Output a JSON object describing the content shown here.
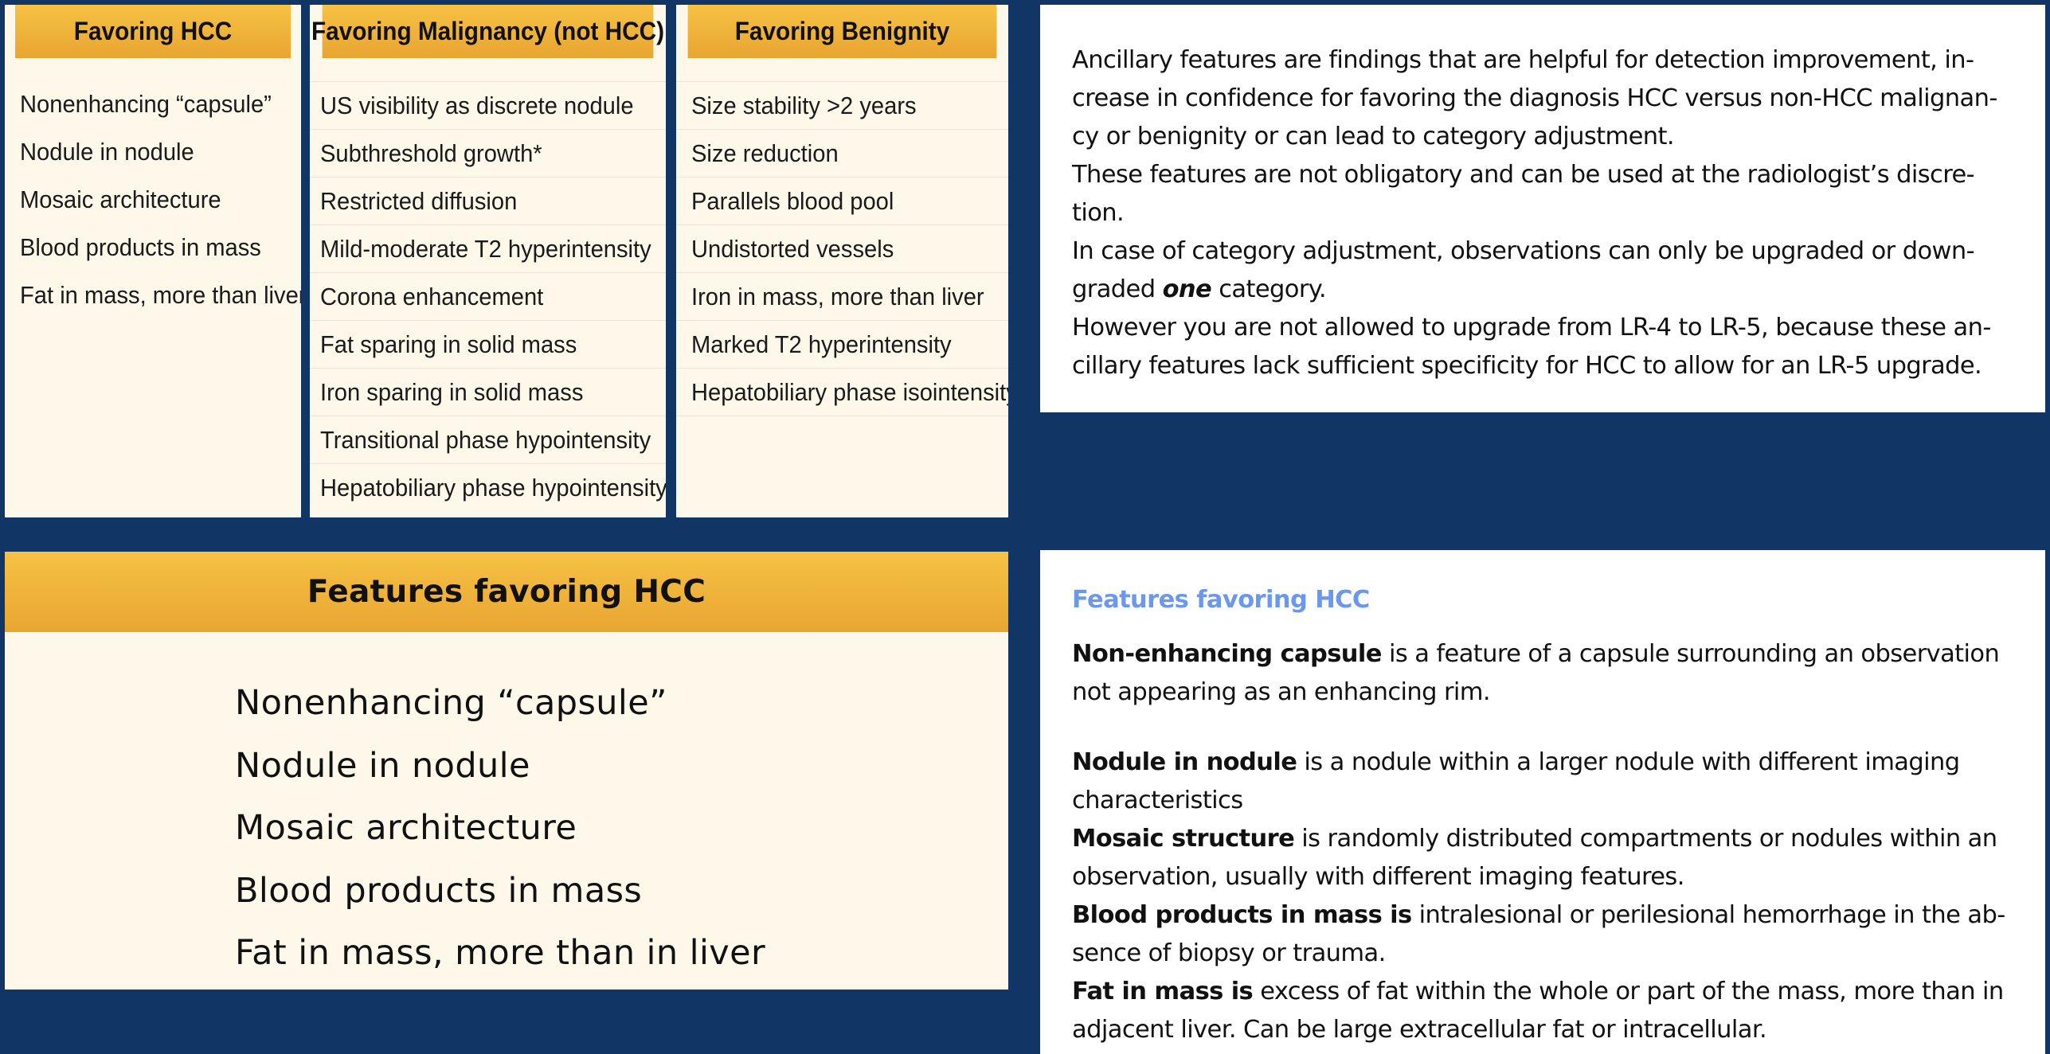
{
  "tables": {
    "favoring_hcc": {
      "header": "Favoring HCC",
      "items": [
        "Nonenhancing “capsule”",
        "Nodule in nodule",
        "Mosaic architecture",
        "Blood products in mass",
        "Fat in mass, more than liver"
      ]
    },
    "favoring_malignancy": {
      "header": "Favoring Malignancy (not HCC)",
      "items": [
        "US visibility as discrete nodule",
        "Subthreshold growth*",
        "Restricted diffusion",
        "Mild-moderate T2 hyperintensity",
        "Corona enhancement",
        "Fat sparing in solid mass",
        "Iron sparing in solid mass",
        "Transitional phase hypointensity",
        "Hepatobiliary phase hypointensity"
      ]
    },
    "favoring_benignity": {
      "header": "Favoring Benignity",
      "items": [
        "Size stability >2 years",
        "Size reduction",
        "Parallels blood pool",
        "Undistorted vessels",
        "Iron in mass, more than liver",
        "Marked T2 hyperintensity",
        "Hepatobiliary phase isointensity"
      ]
    }
  },
  "ancillary_text": {
    "line1": "Ancillary features are findings that are helpful for detection improvement, in-",
    "line2": "crease in confidence for favoring the diagnosis HCC versus non-HCC malignan-",
    "line3": "cy or benignity or can lead to category adjustment.",
    "line4": "These features are not obligatory and can be used at the radiologist’s discre-",
    "line5": "tion.",
    "line6": "In case of category adjustment, observations can only be upgraded or down-",
    "line7_pre": "graded ",
    "line7_em": "one",
    "line7_post": " category.",
    "line8": "However you are not allowed to upgrade from LR-4 to LR-5, because these an-",
    "line9": "cillary features lack sufficient specificity for HCC to allow for an LR-5 upgrade."
  },
  "big_table": {
    "header": "Features favoring HCC",
    "items": [
      "Nonenhancing “capsule”",
      "Nodule in nodule",
      "Mosaic architecture",
      "Blood products in mass",
      "Fat in mass, more than in liver"
    ]
  },
  "hcc_definitions": {
    "title": "Features favoring HCC",
    "capsule_term": "Non-enhancing capsule",
    "capsule_l1": " is a feature of a capsule surrounding an observation",
    "capsule_l2": "not appearing as an enhancing rim.",
    "nodule_term": "Nodule in nodule",
    "nodule_l1": " is a nodule within a larger nodule with different imaging",
    "nodule_l2": "characteristics",
    "mosaic_term": "Mosaic structure",
    "mosaic_l1": " is randomly distributed compartments or nodules within an",
    "mosaic_l2": "observation, usually with different imaging features.",
    "blood_term": "Blood products in mass is",
    "blood_l1": " intralesional or perilesional hemorrhage in the ab-",
    "blood_l2": "sence of biopsy or trauma.",
    "fat_term": "Fat in mass is",
    "fat_l1": " excess of fat within the whole or part of the mass, more than in",
    "fat_l2": "adjacent liver. Can be large extracellular fat or intracellular."
  }
}
